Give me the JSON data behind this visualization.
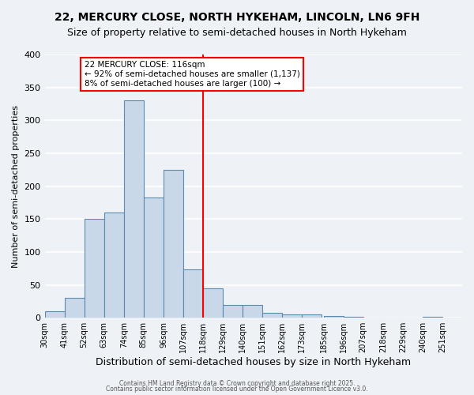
{
  "title": "22, MERCURY CLOSE, NORTH HYKEHAM, LINCOLN, LN6 9FH",
  "subtitle": "Size of property relative to semi-detached houses in North Hykeham",
  "xlabel": "Distribution of semi-detached houses by size in North Hykeham",
  "ylabel": "Number of semi-detached properties",
  "bin_labels": [
    "30sqm",
    "41sqm",
    "52sqm",
    "63sqm",
    "74sqm",
    "85sqm",
    "96sqm",
    "107sqm",
    "118sqm",
    "129sqm",
    "140sqm",
    "151sqm",
    "162sqm",
    "173sqm",
    "185sqm",
    "196sqm",
    "207sqm",
    "218sqm",
    "229sqm",
    "240sqm",
    "251sqm"
  ],
  "bin_edges": [
    30,
    41,
    52,
    63,
    74,
    85,
    96,
    107,
    118,
    129,
    140,
    151,
    162,
    173,
    185,
    196,
    207,
    218,
    229,
    240,
    251
  ],
  "bar_heights": [
    10,
    30,
    150,
    160,
    330,
    183,
    225,
    73,
    45,
    19,
    19,
    8,
    5,
    5,
    3,
    1,
    0,
    0,
    0,
    1
  ],
  "bar_color": "#c8d8e8",
  "bar_edge_color": "#5a8ab0",
  "vline_x": 118,
  "vline_color": "red",
  "annotation_title": "22 MERCURY CLOSE: 116sqm",
  "annotation_line1": "← 92% of semi-detached houses are smaller (1,137)",
  "annotation_line2": "8% of semi-detached houses are larger (100) →",
  "ylim": [
    0,
    400
  ],
  "yticks": [
    0,
    50,
    100,
    150,
    200,
    250,
    300,
    350,
    400
  ],
  "footer1": "Contains HM Land Registry data © Crown copyright and database right 2025.",
  "footer2": "Contains public sector information licensed under the Open Government Licence v3.0.",
  "background_color": "#eef2f7",
  "grid_color": "#ffffff",
  "title_fontsize": 10,
  "subtitle_fontsize": 9,
  "ylabel_fontsize": 8,
  "xlabel_fontsize": 9
}
